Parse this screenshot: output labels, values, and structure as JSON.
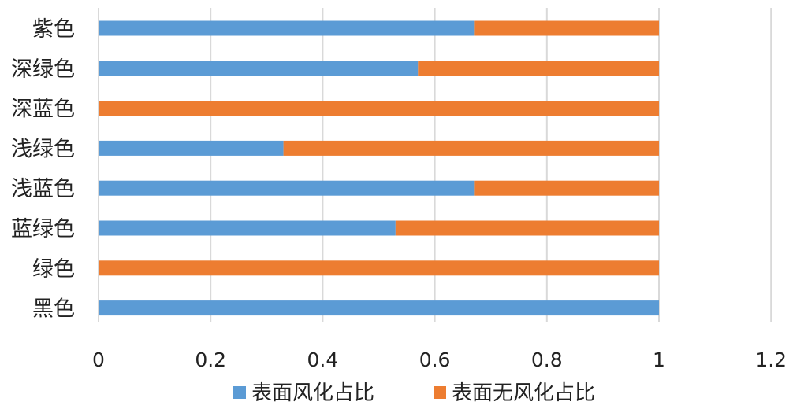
{
  "chart_data": {
    "type": "bar",
    "orientation": "horizontal",
    "stacked": true,
    "categories": [
      "紫色",
      "深绿色",
      "深蓝色",
      "浅绿色",
      "浅蓝色",
      "蓝绿色",
      "绿色",
      "黑色"
    ],
    "series": [
      {
        "name": "表面风化占比",
        "color": "#5B9BD5",
        "values": [
          0.67,
          0.57,
          0,
          0.33,
          0.67,
          0.53,
          0,
          1
        ]
      },
      {
        "name": "表面无风化占比",
        "color": "#ED7D31",
        "values": [
          0.33,
          0.43,
          1,
          0.67,
          0.33,
          0.47,
          1,
          0
        ]
      }
    ],
    "xlim": [
      0,
      1.2
    ],
    "xticks": [
      "0",
      "0.2",
      "0.4",
      "0.6",
      "0.8",
      "1",
      "1.2"
    ],
    "grid": true,
    "legend": "bottom"
  }
}
